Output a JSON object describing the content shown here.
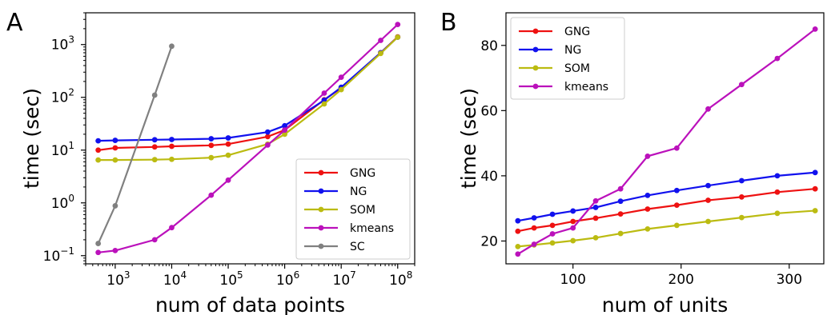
{
  "figure": {
    "panels": [
      "A",
      "B"
    ]
  },
  "chart_data": [
    {
      "type": "line",
      "panel": "A",
      "xlabel": "num of data points",
      "ylabel": "time (sec)",
      "xscale": "log",
      "yscale": "log",
      "xlim": [
        300,
        200000000
      ],
      "ylim": [
        0.07,
        4000
      ],
      "xticks": [
        {
          "base": "10",
          "exp": "3",
          "value": 1000
        },
        {
          "base": "10",
          "exp": "4",
          "value": 10000
        },
        {
          "base": "10",
          "exp": "5",
          "value": 100000
        },
        {
          "base": "10",
          "exp": "6",
          "value": 1000000
        },
        {
          "base": "10",
          "exp": "7",
          "value": 10000000
        },
        {
          "base": "10",
          "exp": "8",
          "value": 100000000
        }
      ],
      "yticks": [
        {
          "base": "10",
          "exp": "−1",
          "value": 0.1
        },
        {
          "base": "10",
          "exp": "0",
          "value": 1
        },
        {
          "base": "10",
          "exp": "1",
          "value": 10
        },
        {
          "base": "10",
          "exp": "2",
          "value": 100
        },
        {
          "base": "10",
          "exp": "3",
          "value": 1000
        }
      ],
      "legend_position": "lower-right",
      "series": [
        {
          "name": "GNG",
          "color": "#ee1111",
          "x": [
            500,
            1000,
            5000,
            10000,
            50000,
            100000,
            500000,
            1000000,
            5000000,
            10000000,
            50000000,
            100000000
          ],
          "y": [
            10,
            11,
            11.5,
            11.8,
            12.3,
            13,
            18,
            24,
            90,
            150,
            700,
            1400
          ]
        },
        {
          "name": "NG",
          "color": "#1111ee",
          "x": [
            500,
            1000,
            5000,
            10000,
            50000,
            100000,
            500000,
            1000000,
            5000000,
            10000000,
            50000000,
            100000000
          ],
          "y": [
            15,
            15.3,
            15.7,
            15.9,
            16.4,
            17,
            22,
            29,
            88,
            155,
            700,
            1380
          ]
        },
        {
          "name": "SOM",
          "color": "#bbbb11",
          "x": [
            500,
            1000,
            5000,
            10000,
            50000,
            100000,
            500000,
            1000000,
            5000000,
            10000000,
            50000000,
            100000000
          ],
          "y": [
            6.5,
            6.5,
            6.6,
            6.7,
            7.2,
            8,
            13,
            20,
            75,
            140,
            680,
            1380
          ]
        },
        {
          "name": "kmeans",
          "color": "#bb11bb",
          "x": [
            500,
            1000,
            5000,
            10000,
            50000,
            100000,
            500000,
            1000000,
            5000000,
            10000000,
            50000000,
            100000000
          ],
          "y": [
            0.115,
            0.125,
            0.2,
            0.34,
            1.4,
            2.7,
            12.5,
            24,
            120,
            240,
            1200,
            2400
          ]
        },
        {
          "name": "SC",
          "color": "#808080",
          "x": [
            500,
            1000,
            5000,
            10000
          ],
          "y": [
            0.17,
            0.88,
            110,
            930
          ]
        }
      ]
    },
    {
      "type": "line",
      "panel": "B",
      "xlabel": "num of units",
      "ylabel": "time (sec)",
      "xlim": [
        38,
        332
      ],
      "ylim": [
        13,
        90
      ],
      "xticks": [
        100,
        200,
        300
      ],
      "yticks": [
        20,
        40,
        60,
        80
      ],
      "legend_position": "upper-left",
      "series": [
        {
          "name": "GNG",
          "color": "#ee1111",
          "x": [
            49,
            64,
            81,
            100,
            121,
            144,
            169,
            196,
            225,
            256,
            289,
            324
          ],
          "y": [
            23,
            24,
            24.8,
            26,
            27,
            28.3,
            29.8,
            31,
            32.5,
            33.5,
            35,
            36
          ]
        },
        {
          "name": "NG",
          "color": "#1111ee",
          "x": [
            49,
            64,
            81,
            100,
            121,
            144,
            169,
            196,
            225,
            256,
            289,
            324
          ],
          "y": [
            26.2,
            27.1,
            28.2,
            29.2,
            30.3,
            32.2,
            34,
            35.5,
            37,
            38.5,
            40,
            41
          ]
        },
        {
          "name": "SOM",
          "color": "#bbbb11",
          "x": [
            49,
            64,
            81,
            100,
            121,
            144,
            169,
            196,
            225,
            256,
            289,
            324
          ],
          "y": [
            18.3,
            18.8,
            19.4,
            20.1,
            21,
            22.3,
            23.7,
            24.8,
            26,
            27.2,
            28.5,
            29.3
          ]
        },
        {
          "name": "kmeans",
          "color": "#bb11bb",
          "x": [
            49,
            64,
            81,
            100,
            121,
            144,
            169,
            196,
            225,
            256,
            289,
            324
          ],
          "y": [
            16,
            19,
            22.2,
            24,
            32.3,
            36,
            46,
            48.5,
            60.5,
            68,
            76,
            85
          ]
        }
      ]
    }
  ]
}
